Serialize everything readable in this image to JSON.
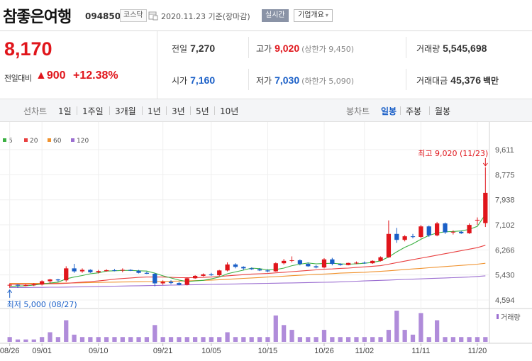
{
  "header": {
    "stock_name": "참좋은여행",
    "stock_code": "094850",
    "market": "코스닥",
    "date_text": "2020.11.23 기준(장마감)",
    "realtime_button": "실시간",
    "company_info_button": "기업개요",
    "company_info_caret": "▾"
  },
  "price": {
    "current": "8,170",
    "change_label": "전일대비",
    "change": "▲900",
    "change_pct": "+12.38%"
  },
  "stats": {
    "prev_close": {
      "label": "전일",
      "value": "7,270"
    },
    "high": {
      "label": "고가",
      "value": "9,020",
      "note": "(상한가 9,450)"
    },
    "volume": {
      "label": "거래량",
      "value": "5,545,698"
    },
    "open": {
      "label": "시가",
      "value": "7,160"
    },
    "low": {
      "label": "저가",
      "value": "7,030",
      "note": "(하한가 5,090)"
    },
    "amount": {
      "label": "거래대금",
      "value": "45,376",
      "unit": "백만"
    }
  },
  "period_bar": {
    "line_chart_label": "선차트",
    "line_periods": [
      "1일",
      "1주일",
      "3개월",
      "1년",
      "3년",
      "5년",
      "10년"
    ],
    "candle_label": "봉차트",
    "candle_periods": [
      "일봉",
      "주봉",
      "월봉"
    ],
    "selected_candle": "일봉"
  },
  "colors": {
    "up": "#e0151b",
    "down": "#1a5fc7",
    "ma5": "#3cb043",
    "ma20": "#e94040",
    "ma60": "#f0922e",
    "ma120": "#9c6fd1"
  },
  "chart_data": {
    "type": "candlestick",
    "legend": [
      "5",
      "20",
      "60",
      "120"
    ],
    "y_ticks": [
      9611,
      8775,
      7938,
      7102,
      6266,
      5430,
      4594
    ],
    "y_tick_labels": [
      "9,611",
      "8,775",
      "7,938",
      "7,102",
      "6,266",
      "5,430",
      "4,594"
    ],
    "x_ticks": [
      {
        "i": 0,
        "label": "08/26"
      },
      {
        "i": 4,
        "label": "09/01"
      },
      {
        "i": 11,
        "label": "09/10"
      },
      {
        "i": 19,
        "label": "09/21"
      },
      {
        "i": 25,
        "label": "10/05"
      },
      {
        "i": 32,
        "label": "10/15"
      },
      {
        "i": 39,
        "label": "10/26"
      },
      {
        "i": 44,
        "label": "11/02"
      },
      {
        "i": 51,
        "label": "11/11"
      },
      {
        "i": 58,
        "label": "11/20"
      }
    ],
    "max_annotation": "최고 9,020 (11/23)",
    "min_annotation": "최저 5,000 (08/27)",
    "volume_legend": "거래량",
    "candles": [
      [
        5100,
        5150,
        5000,
        5100
      ],
      [
        5100,
        5130,
        5000,
        5080
      ],
      [
        5080,
        5120,
        5050,
        5090
      ],
      [
        5090,
        5160,
        5060,
        5110
      ],
      [
        5110,
        5250,
        5080,
        5220
      ],
      [
        5220,
        5300,
        5150,
        5280
      ],
      [
        5280,
        5300,
        5200,
        5250
      ],
      [
        5250,
        5720,
        5200,
        5650
      ],
      [
        5650,
        5800,
        5500,
        5550
      ],
      [
        5550,
        5650,
        5500,
        5600
      ],
      [
        5600,
        5620,
        5500,
        5520
      ],
      [
        5520,
        5600,
        5480,
        5560
      ],
      [
        5560,
        5620,
        5540,
        5590
      ],
      [
        5590,
        5630,
        5550,
        5580
      ],
      [
        5580,
        5650,
        5520,
        5600
      ],
      [
        5600,
        5620,
        5560,
        5570
      ],
      [
        5570,
        5600,
        5480,
        5500
      ],
      [
        5500,
        5540,
        5460,
        5470
      ],
      [
        5470,
        5500,
        5050,
        5150
      ],
      [
        5150,
        5250,
        5100,
        5200
      ],
      [
        5200,
        5250,
        5120,
        5160
      ],
      [
        5160,
        5200,
        5080,
        5100
      ],
      [
        5100,
        5350,
        5080,
        5320
      ],
      [
        5320,
        5420,
        5300,
        5400
      ],
      [
        5400,
        5480,
        5380,
        5450
      ],
      [
        5450,
        5500,
        5400,
        5420
      ],
      [
        5420,
        5600,
        5400,
        5580
      ],
      [
        5580,
        5850,
        5550,
        5780
      ],
      [
        5780,
        5820,
        5650,
        5700
      ],
      [
        5700,
        5720,
        5600,
        5650
      ],
      [
        5650,
        5680,
        5600,
        5620
      ],
      [
        5620,
        5660,
        5560,
        5580
      ],
      [
        5580,
        5620,
        5520,
        5550
      ],
      [
        5550,
        5850,
        5540,
        5820
      ],
      [
        5820,
        5960,
        5780,
        5900
      ],
      [
        5900,
        6050,
        5850,
        5920
      ],
      [
        5920,
        5950,
        5750,
        5800
      ],
      [
        5800,
        5850,
        5700,
        5720
      ],
      [
        5720,
        5760,
        5650,
        5680
      ],
      [
        5680,
        5990,
        5650,
        5950
      ],
      [
        5950,
        6000,
        5750,
        5800
      ],
      [
        5800,
        5820,
        5740,
        5760
      ],
      [
        5760,
        5840,
        5750,
        5830
      ],
      [
        5830,
        5880,
        5790,
        5840
      ],
      [
        5840,
        5880,
        5800,
        5820
      ],
      [
        5820,
        5920,
        5800,
        5900
      ],
      [
        5900,
        6050,
        5880,
        6020
      ],
      [
        6020,
        7250,
        6000,
        6800
      ],
      [
        6800,
        7000,
        6500,
        6600
      ],
      [
        6600,
        6760,
        6550,
        6720
      ],
      [
        6720,
        6800,
        6650,
        6700
      ],
      [
        6700,
        7100,
        6650,
        7050
      ],
      [
        7050,
        7080,
        6700,
        6750
      ],
      [
        6750,
        7200,
        6720,
        7150
      ],
      [
        7150,
        7180,
        6800,
        6850
      ],
      [
        6850,
        6920,
        6780,
        6870
      ],
      [
        6870,
        6900,
        6800,
        6820
      ],
      [
        6820,
        7150,
        6800,
        7100
      ],
      [
        7270,
        7350,
        7100,
        7270
      ],
      [
        7160,
        9020,
        7030,
        8170
      ]
    ],
    "volumes": [
      2,
      1,
      1,
      1,
      2,
      4,
      2,
      9,
      3,
      2,
      2,
      2,
      2,
      2,
      2,
      2,
      2,
      2,
      7,
      2,
      2,
      2,
      2,
      2,
      2,
      2,
      2,
      4,
      2,
      2,
      2,
      2,
      2,
      11,
      7,
      5,
      2,
      2,
      2,
      5,
      2,
      2,
      2,
      2,
      2,
      2,
      2,
      5,
      13,
      5,
      3,
      12,
      2,
      9,
      2,
      2,
      2,
      2,
      2,
      2
    ],
    "ma5": [
      5050,
      5060,
      5070,
      5090,
      5130,
      5160,
      5190,
      5300,
      5360,
      5410,
      5470,
      5500,
      5560,
      5570,
      5580,
      5580,
      5570,
      5560,
      5490,
      5400,
      5330,
      5260,
      5210,
      5230,
      5250,
      5300,
      5360,
      5470,
      5530,
      5590,
      5660,
      5640,
      5600,
      5610,
      5660,
      5740,
      5790,
      5830,
      5800,
      5810,
      5820,
      5800,
      5790,
      5800,
      5820,
      5850,
      5900,
      6030,
      6200,
      6350,
      6470,
      6620,
      6750,
      6830,
      6870,
      6880,
      6900,
      6950,
      7050,
      7450
    ],
    "ma20": [
      5120,
      5120,
      5120,
      5125,
      5130,
      5135,
      5140,
      5150,
      5170,
      5190,
      5210,
      5230,
      5260,
      5290,
      5310,
      5330,
      5350,
      5360,
      5360,
      5360,
      5350,
      5340,
      5340,
      5340,
      5350,
      5360,
      5380,
      5400,
      5420,
      5440,
      5460,
      5470,
      5480,
      5500,
      5520,
      5540,
      5560,
      5580,
      5600,
      5620,
      5630,
      5650,
      5660,
      5680,
      5700,
      5720,
      5740,
      5790,
      5840,
      5890,
      5940,
      5990,
      6040,
      6090,
      6140,
      6190,
      6240,
      6290,
      6340,
      6420
    ],
    "ma60": [
      5150,
      5150,
      5150,
      5150,
      5150,
      5150,
      5155,
      5160,
      5165,
      5170,
      5175,
      5180,
      5185,
      5190,
      5195,
      5200,
      5205,
      5210,
      5210,
      5215,
      5220,
      5225,
      5230,
      5240,
      5250,
      5260,
      5270,
      5285,
      5300,
      5315,
      5330,
      5345,
      5360,
      5375,
      5390,
      5405,
      5420,
      5435,
      5450,
      5460,
      5475,
      5490,
      5500,
      5510,
      5520,
      5535,
      5550,
      5570,
      5590,
      5610,
      5630,
      5650,
      5670,
      5690,
      5710,
      5730,
      5750,
      5770,
      5790,
      5820
    ],
    "ma120": [
      5010,
      5010,
      5010,
      5015,
      5015,
      5020,
      5020,
      5025,
      5030,
      5035,
      5040,
      5045,
      5050,
      5055,
      5060,
      5065,
      5070,
      5075,
      5080,
      5085,
      5090,
      5095,
      5100,
      5105,
      5110,
      5115,
      5120,
      5125,
      5130,
      5135,
      5140,
      5145,
      5150,
      5155,
      5160,
      5165,
      5170,
      5175,
      5180,
      5185,
      5190,
      5200,
      5210,
      5220,
      5230,
      5240,
      5250,
      5260,
      5270,
      5280,
      5290,
      5300,
      5310,
      5320,
      5330,
      5340,
      5350,
      5360,
      5380,
      5400
    ]
  }
}
